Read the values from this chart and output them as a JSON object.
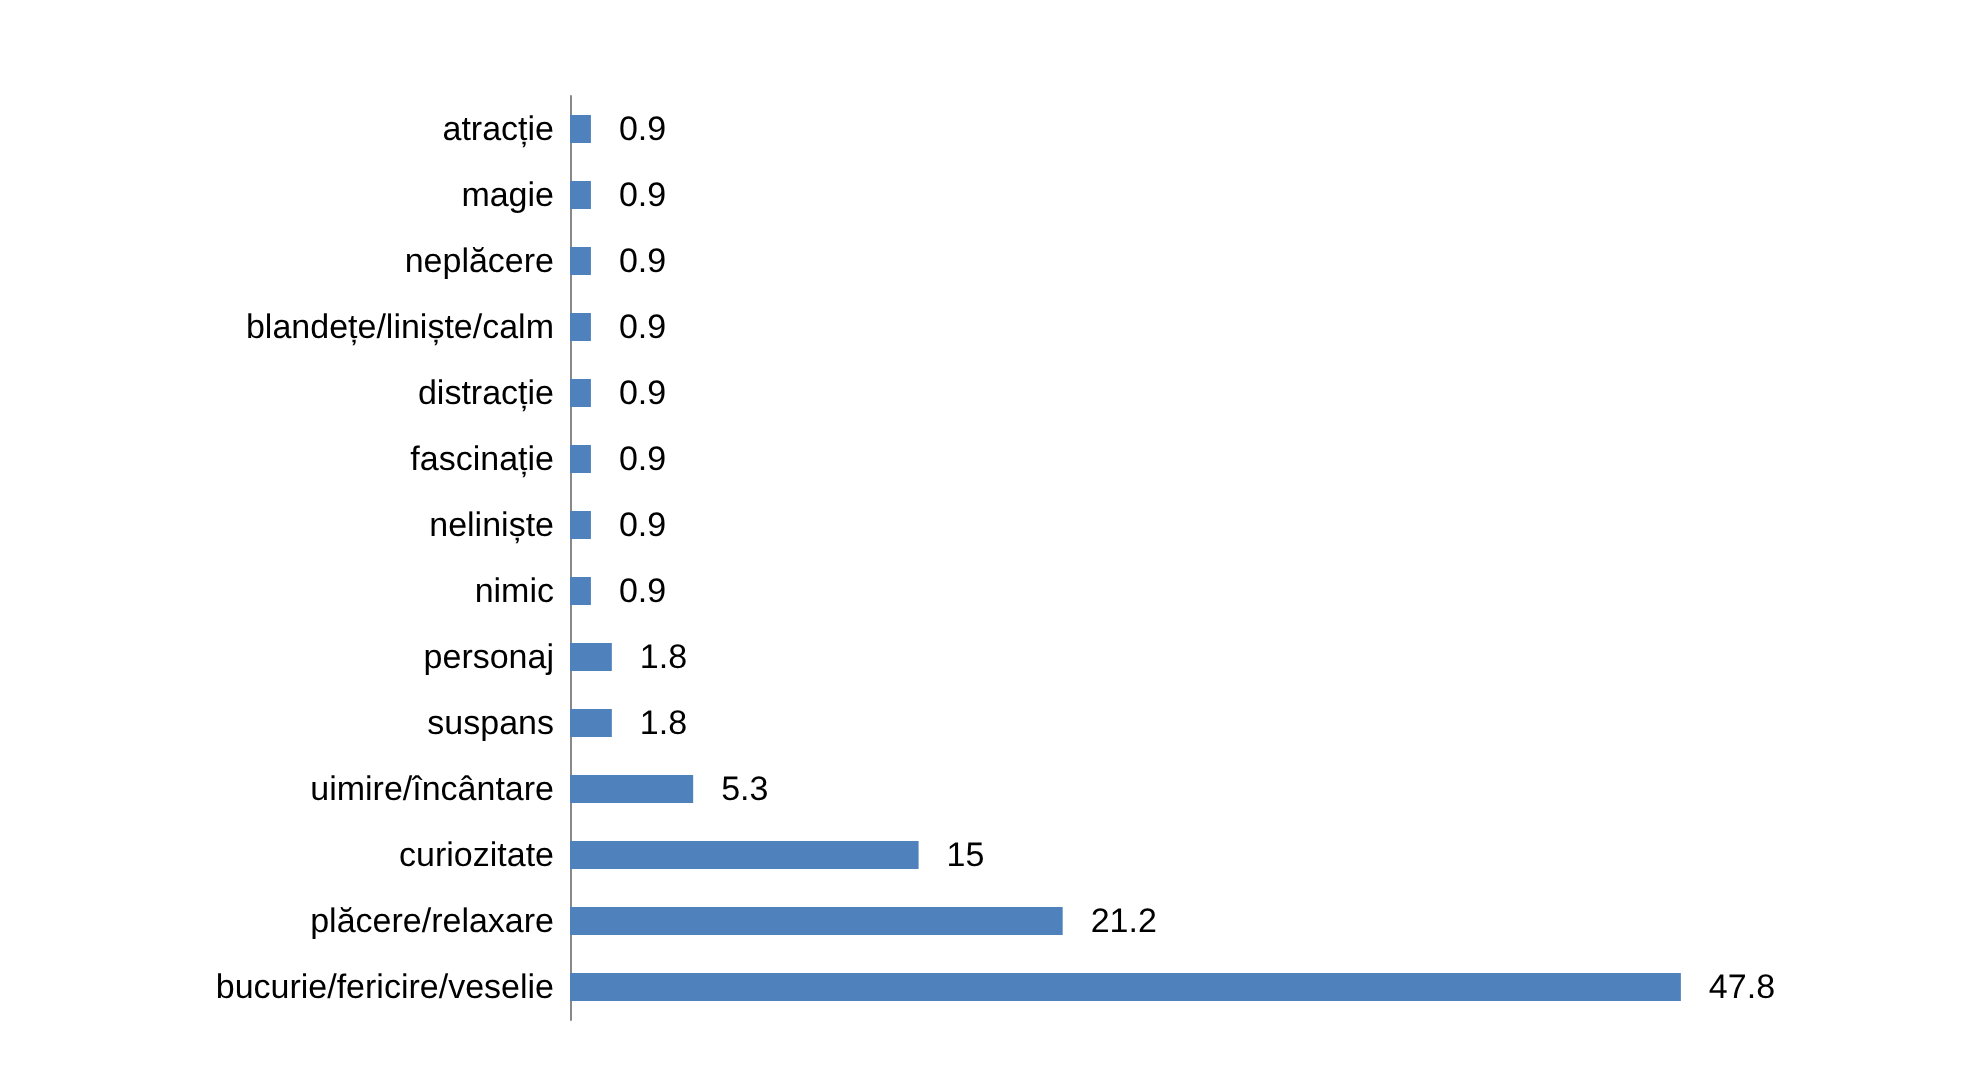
{
  "chart_data": {
    "type": "bar",
    "orientation": "horizontal",
    "categories": [
      "atracție",
      "magie",
      "neplăcere",
      "blandețe/liniște/calm",
      "distracție",
      "fascinație",
      "neliniște",
      "nimic",
      "personaj",
      "suspans",
      "uimire/încântare",
      "curiozitate",
      "plăcere/relaxare",
      "bucurie/fericire/veselie"
    ],
    "values": [
      0.9,
      0.9,
      0.9,
      0.9,
      0.9,
      0.9,
      0.9,
      0.9,
      1.8,
      1.8,
      5.3,
      15,
      21.2,
      47.8
    ],
    "color": "#4f81bd",
    "data_labels": true,
    "tick_labels": "y"
  }
}
